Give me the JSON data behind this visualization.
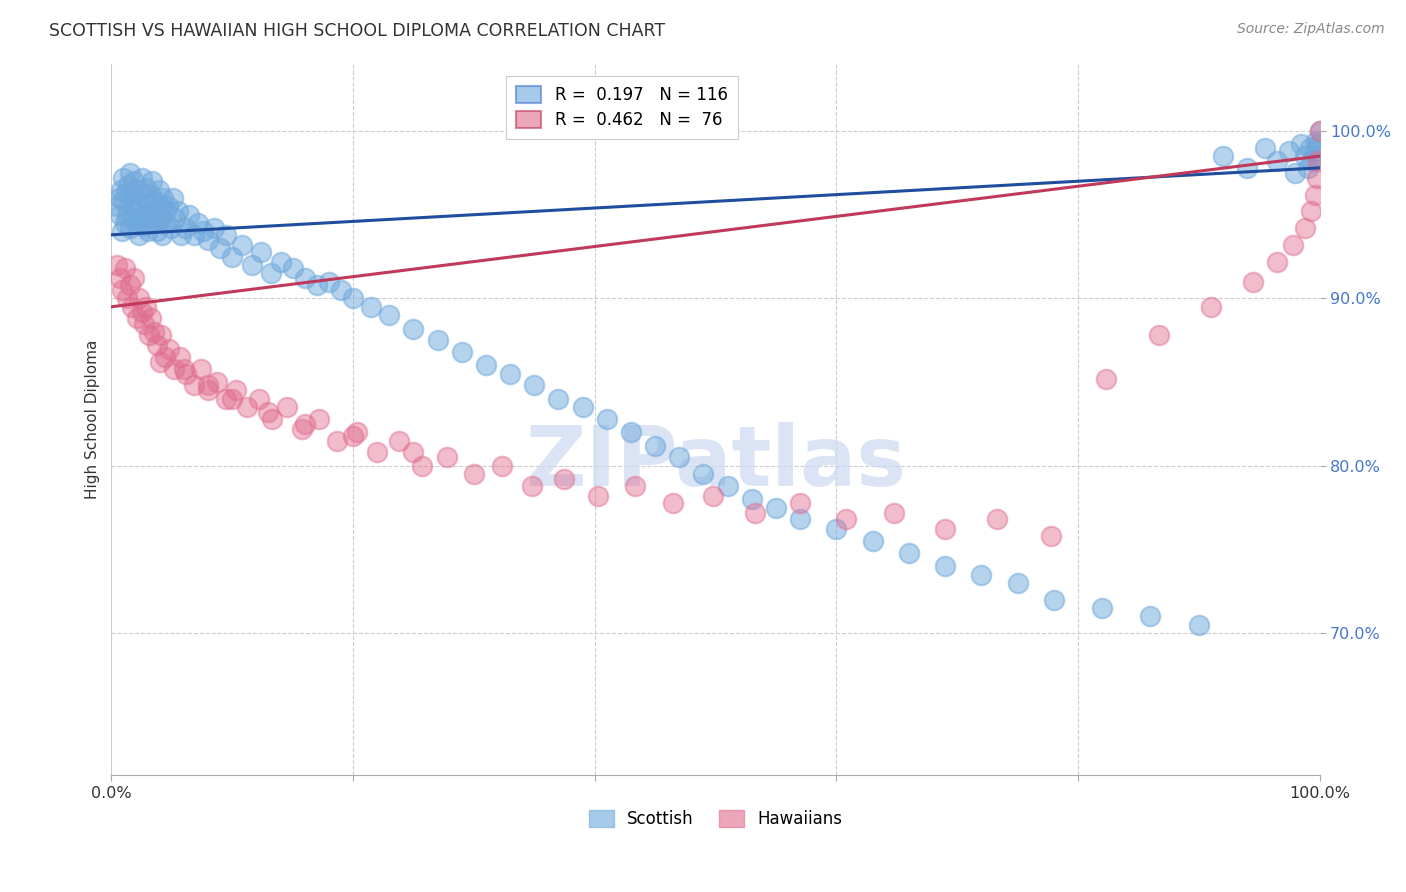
{
  "title": "SCOTTISH VS HAWAIIAN HIGH SCHOOL DIPLOMA CORRELATION CHART",
  "source": "Source: ZipAtlas.com",
  "ylabel": "High School Diploma",
  "ytick_labels": [
    "70.0%",
    "80.0%",
    "90.0%",
    "100.0%"
  ],
  "ytick_values": [
    0.7,
    0.8,
    0.9,
    1.0
  ],
  "xlim": [
    0.0,
    1.0
  ],
  "ylim": [
    0.615,
    1.04
  ],
  "legend_blue_r": "0.197",
  "legend_blue_n": "116",
  "legend_pink_r": "0.462",
  "legend_pink_n": "76",
  "blue_color": "#6fa8dc",
  "pink_color": "#e06c8e",
  "trend_blue_color": "#1f4e9e",
  "trend_pink_color": "#c0395a",
  "watermark_color": "#ccd9f0",
  "scottish_x": [
    0.005,
    0.006,
    0.007,
    0.008,
    0.009,
    0.01,
    0.01,
    0.011,
    0.012,
    0.013,
    0.014,
    0.015,
    0.015,
    0.016,
    0.017,
    0.018,
    0.019,
    0.02,
    0.02,
    0.021,
    0.022,
    0.023,
    0.024,
    0.025,
    0.026,
    0.027,
    0.028,
    0.029,
    0.03,
    0.031,
    0.032,
    0.033,
    0.034,
    0.035,
    0.036,
    0.037,
    0.038,
    0.039,
    0.04,
    0.041,
    0.042,
    0.043,
    0.044,
    0.045,
    0.047,
    0.049,
    0.051,
    0.053,
    0.055,
    0.058,
    0.061,
    0.064,
    0.068,
    0.072,
    0.076,
    0.08,
    0.085,
    0.09,
    0.095,
    0.1,
    0.108,
    0.116,
    0.124,
    0.132,
    0.14,
    0.15,
    0.16,
    0.17,
    0.18,
    0.19,
    0.2,
    0.215,
    0.23,
    0.25,
    0.27,
    0.29,
    0.31,
    0.33,
    0.35,
    0.37,
    0.39,
    0.41,
    0.43,
    0.45,
    0.47,
    0.49,
    0.51,
    0.53,
    0.55,
    0.57,
    0.6,
    0.63,
    0.66,
    0.69,
    0.72,
    0.75,
    0.78,
    0.82,
    0.86,
    0.9,
    0.92,
    0.94,
    0.955,
    0.965,
    0.975,
    0.98,
    0.985,
    0.988,
    0.99,
    0.992,
    0.994,
    0.996,
    0.997,
    0.998,
    0.999,
    1.0
  ],
  "scottish_y": [
    0.955,
    0.96,
    0.95,
    0.965,
    0.94,
    0.958,
    0.972,
    0.945,
    0.963,
    0.95,
    0.968,
    0.942,
    0.975,
    0.955,
    0.948,
    0.962,
    0.97,
    0.945,
    0.958,
    0.952,
    0.965,
    0.938,
    0.948,
    0.972,
    0.943,
    0.96,
    0.95,
    0.966,
    0.94,
    0.955,
    0.948,
    0.962,
    0.97,
    0.945,
    0.958,
    0.952,
    0.94,
    0.965,
    0.948,
    0.955,
    0.938,
    0.96,
    0.945,
    0.952,
    0.955,
    0.942,
    0.96,
    0.948,
    0.952,
    0.938,
    0.942,
    0.95,
    0.938,
    0.945,
    0.94,
    0.935,
    0.942,
    0.93,
    0.938,
    0.925,
    0.932,
    0.92,
    0.928,
    0.915,
    0.922,
    0.918,
    0.912,
    0.908,
    0.91,
    0.905,
    0.9,
    0.895,
    0.89,
    0.882,
    0.875,
    0.868,
    0.86,
    0.855,
    0.848,
    0.84,
    0.835,
    0.828,
    0.82,
    0.812,
    0.805,
    0.795,
    0.788,
    0.78,
    0.775,
    0.768,
    0.762,
    0.755,
    0.748,
    0.74,
    0.735,
    0.73,
    0.72,
    0.715,
    0.71,
    0.705,
    0.985,
    0.978,
    0.99,
    0.982,
    0.988,
    0.975,
    0.992,
    0.985,
    0.978,
    0.99,
    0.982,
    0.988,
    0.994,
    0.985,
    0.992,
    1.0
  ],
  "hawaiian_x": [
    0.005,
    0.007,
    0.009,
    0.011,
    0.013,
    0.015,
    0.017,
    0.019,
    0.021,
    0.023,
    0.025,
    0.027,
    0.029,
    0.031,
    0.033,
    0.035,
    0.038,
    0.041,
    0.044,
    0.048,
    0.052,
    0.057,
    0.062,
    0.068,
    0.074,
    0.08,
    0.087,
    0.095,
    0.103,
    0.112,
    0.122,
    0.133,
    0.145,
    0.158,
    0.172,
    0.187,
    0.203,
    0.22,
    0.238,
    0.257,
    0.278,
    0.3,
    0.323,
    0.348,
    0.375,
    0.403,
    0.433,
    0.465,
    0.498,
    0.533,
    0.57,
    0.608,
    0.648,
    0.69,
    0.733,
    0.778,
    0.823,
    0.867,
    0.91,
    0.945,
    0.965,
    0.978,
    0.988,
    0.993,
    0.996,
    0.998,
    0.999,
    1.0,
    0.04,
    0.06,
    0.08,
    0.1,
    0.13,
    0.16,
    0.2,
    0.25
  ],
  "hawaiian_y": [
    0.92,
    0.912,
    0.905,
    0.918,
    0.9,
    0.908,
    0.895,
    0.912,
    0.888,
    0.9,
    0.892,
    0.885,
    0.895,
    0.878,
    0.888,
    0.88,
    0.872,
    0.878,
    0.865,
    0.87,
    0.858,
    0.865,
    0.855,
    0.848,
    0.858,
    0.845,
    0.85,
    0.84,
    0.845,
    0.835,
    0.84,
    0.828,
    0.835,
    0.822,
    0.828,
    0.815,
    0.82,
    0.808,
    0.815,
    0.8,
    0.805,
    0.795,
    0.8,
    0.788,
    0.792,
    0.782,
    0.788,
    0.778,
    0.782,
    0.772,
    0.778,
    0.768,
    0.772,
    0.762,
    0.768,
    0.758,
    0.852,
    0.878,
    0.895,
    0.91,
    0.922,
    0.932,
    0.942,
    0.952,
    0.962,
    0.972,
    0.982,
    1.0,
    0.862,
    0.858,
    0.848,
    0.84,
    0.832,
    0.825,
    0.818,
    0.808
  ],
  "trend_blue_x0": 0.0,
  "trend_blue_x1": 1.0,
  "trend_blue_y0": 0.938,
  "trend_blue_y1": 0.978,
  "trend_pink_x0": 0.0,
  "trend_pink_x1": 1.0,
  "trend_pink_y0": 0.895,
  "trend_pink_y1": 0.985
}
